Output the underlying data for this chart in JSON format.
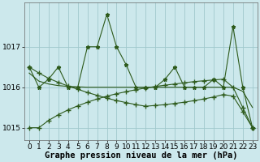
{
  "xlabel": "Graphe pression niveau de la mer (hPa)",
  "x": [
    0,
    1,
    2,
    3,
    4,
    5,
    6,
    7,
    8,
    9,
    10,
    11,
    12,
    13,
    14,
    15,
    16,
    17,
    18,
    19,
    20,
    21,
    22,
    23
  ],
  "y_main": [
    1016.5,
    1016.0,
    1016.2,
    1016.5,
    1016.0,
    1016.0,
    1017.0,
    1017.0,
    1017.8,
    1017.0,
    1016.55,
    1016.0,
    1016.0,
    1016.0,
    1016.2,
    1016.5,
    1016.0,
    1016.0,
    1016.0,
    1016.2,
    1016.0,
    1017.5,
    1016.0,
    1015.0
  ],
  "y_up": [
    1015.0,
    1015.0,
    1015.18,
    1015.32,
    1015.44,
    1015.54,
    1015.63,
    1015.71,
    1015.78,
    1015.84,
    1015.89,
    1015.94,
    1015.98,
    1016.02,
    1016.05,
    1016.08,
    1016.11,
    1016.14,
    1016.16,
    1016.18,
    1016.2,
    1016.0,
    1015.5,
    1015.0
  ],
  "y_down": [
    1016.5,
    1016.35,
    1016.22,
    1016.12,
    1016.03,
    1015.95,
    1015.87,
    1015.8,
    1015.73,
    1015.67,
    1015.62,
    1015.57,
    1015.53,
    1015.55,
    1015.57,
    1015.6,
    1015.63,
    1015.67,
    1015.71,
    1015.76,
    1015.82,
    1015.78,
    1015.4,
    1015.0
  ],
  "y_flat": [
    1016.35,
    1016.15,
    1016.08,
    1016.04,
    1016.02,
    1016.01,
    1016.0,
    1016.0,
    1016.0,
    1016.0,
    1016.0,
    1016.0,
    1016.0,
    1016.0,
    1016.0,
    1016.0,
    1016.0,
    1016.0,
    1016.0,
    1016.0,
    1016.0,
    1016.0,
    1015.9,
    1015.5
  ],
  "ylim": [
    1014.7,
    1018.1
  ],
  "yticks": [
    1015,
    1016,
    1017
  ],
  "bg_color": "#cce8ec",
  "line_color": "#2d5a1b",
  "grid_color": "#a0c8cc",
  "xlabel_fontsize": 7.5,
  "tick_fontsize": 6.5
}
